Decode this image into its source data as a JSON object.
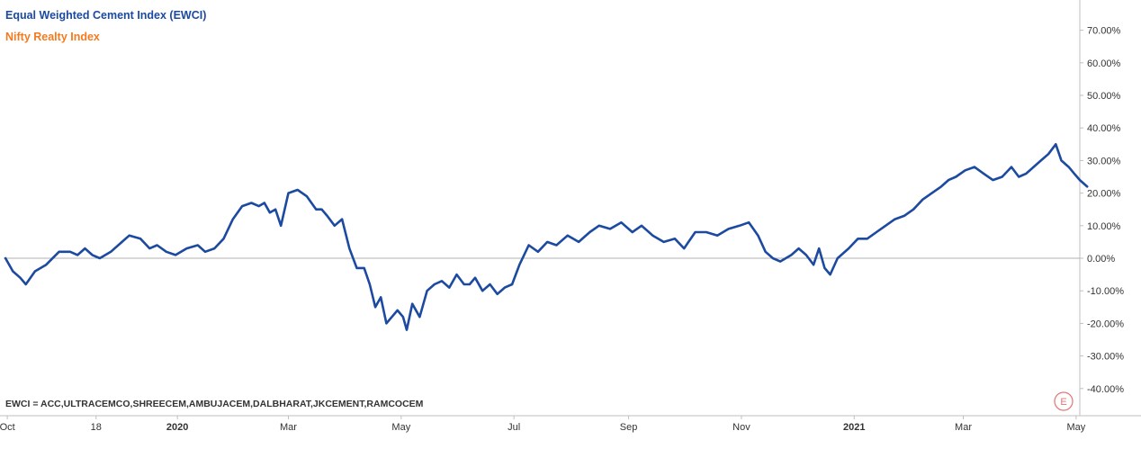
{
  "colors": {
    "ewci": "#1c4aa0",
    "realty": "#f47a1f",
    "trend": "#e51c23",
    "axis": "#bfbfbf",
    "zero": "#b0b0b0"
  },
  "legend": {
    "ewci_label": "Equal Weighted Cement Index (EWCI)",
    "realty_label": "Nifty Realty Index"
  },
  "footnote": "EWCI = ACC,ULTRACEMCO,SHREECEM,AMBUJACEM,DALBHARAT,JKCEMENT,RAMCOCEM",
  "watermark": "E",
  "chart_data": {
    "type": "line",
    "x_unit": "date",
    "y_unit": "percent change",
    "ylim": [
      -45,
      72
    ],
    "xlim": [
      "2019-09-29",
      "2021-05-03"
    ],
    "grid": false,
    "legend_position": "top-left",
    "y_ticks": [
      70,
      60,
      50,
      40,
      30,
      20,
      10,
      0,
      -10,
      -20,
      -30,
      -40
    ],
    "y_tick_labels": [
      "70.00%",
      "60.00%",
      "50.00%",
      "40.00%",
      "30.00%",
      "20.00%",
      "10.00%",
      "0.00%",
      "-10.00%",
      "-20.00%",
      "-30.00%",
      "-40.00%"
    ],
    "x_ticks": [
      {
        "date": "2019-10-01",
        "label": "Oct",
        "bold": false
      },
      {
        "date": "2019-11-18",
        "label": "18",
        "bold": false
      },
      {
        "date": "2020-01-01",
        "label": "2020",
        "bold": true
      },
      {
        "date": "2020-03-01",
        "label": "Mar",
        "bold": false
      },
      {
        "date": "2020-05-01",
        "label": "May",
        "bold": false
      },
      {
        "date": "2020-07-01",
        "label": "Jul",
        "bold": false
      },
      {
        "date": "2020-09-01",
        "label": "Sep",
        "bold": false
      },
      {
        "date": "2020-11-01",
        "label": "Nov",
        "bold": false
      },
      {
        "date": "2021-01-01",
        "label": "2021",
        "bold": true
      },
      {
        "date": "2021-03-01",
        "label": "Mar",
        "bold": false
      },
      {
        "date": "2021-05-01",
        "label": "May",
        "bold": false
      }
    ],
    "series": [
      {
        "name": "Equal Weighted Cement Index (EWCI)",
        "color_key": "ewci",
        "points": [
          [
            "2019-09-30",
            0
          ],
          [
            "2019-10-04",
            -4
          ],
          [
            "2019-10-08",
            -6
          ],
          [
            "2019-10-11",
            -8
          ],
          [
            "2019-10-16",
            -4
          ],
          [
            "2019-10-22",
            -2
          ],
          [
            "2019-10-29",
            2
          ],
          [
            "2019-11-04",
            2
          ],
          [
            "2019-11-08",
            1
          ],
          [
            "2019-11-12",
            3
          ],
          [
            "2019-11-16",
            1
          ],
          [
            "2019-11-20",
            0
          ],
          [
            "2019-11-26",
            2
          ],
          [
            "2019-12-02",
            5
          ],
          [
            "2019-12-06",
            7
          ],
          [
            "2019-12-12",
            6
          ],
          [
            "2019-12-17",
            3
          ],
          [
            "2019-12-21",
            4
          ],
          [
            "2019-12-26",
            2
          ],
          [
            "2019-12-31",
            1
          ],
          [
            "2020-01-06",
            3
          ],
          [
            "2020-01-12",
            4
          ],
          [
            "2020-01-16",
            2
          ],
          [
            "2020-01-21",
            3
          ],
          [
            "2020-01-26",
            6
          ],
          [
            "2020-01-31",
            12
          ],
          [
            "2020-02-05",
            16
          ],
          [
            "2020-02-10",
            17
          ],
          [
            "2020-02-14",
            16
          ],
          [
            "2020-02-17",
            17
          ],
          [
            "2020-02-20",
            14
          ],
          [
            "2020-02-23",
            15
          ],
          [
            "2020-02-26",
            10
          ],
          [
            "2020-03-01",
            20
          ],
          [
            "2020-03-06",
            21
          ],
          [
            "2020-03-11",
            19
          ],
          [
            "2020-03-16",
            15
          ],
          [
            "2020-03-19",
            15
          ],
          [
            "2020-03-22",
            13
          ],
          [
            "2020-03-26",
            10
          ],
          [
            "2020-03-30",
            12
          ],
          [
            "2020-04-03",
            3
          ],
          [
            "2020-04-07",
            -3
          ],
          [
            "2020-04-11",
            -3
          ],
          [
            "2020-04-14",
            -8
          ],
          [
            "2020-04-17",
            -15
          ],
          [
            "2020-04-20",
            -12
          ],
          [
            "2020-04-23",
            -20
          ],
          [
            "2020-04-26",
            -18
          ],
          [
            "2020-04-29",
            -16
          ],
          [
            "2020-05-02",
            -18
          ],
          [
            "2020-05-04",
            -22
          ],
          [
            "2020-05-07",
            -14
          ],
          [
            "2020-05-11",
            -18
          ],
          [
            "2020-05-15",
            -10
          ],
          [
            "2020-05-19",
            -8
          ],
          [
            "2020-05-23",
            -7
          ],
          [
            "2020-05-27",
            -9
          ],
          [
            "2020-05-31",
            -5
          ],
          [
            "2020-06-04",
            -8
          ],
          [
            "2020-06-07",
            -8
          ],
          [
            "2020-06-10",
            -6
          ],
          [
            "2020-06-14",
            -10
          ],
          [
            "2020-06-18",
            -8
          ],
          [
            "2020-06-22",
            -11
          ],
          [
            "2020-06-26",
            -9
          ],
          [
            "2020-06-30",
            -8
          ],
          [
            "2020-07-04",
            -2
          ],
          [
            "2020-07-09",
            4
          ],
          [
            "2020-07-14",
            2
          ],
          [
            "2020-07-19",
            5
          ],
          [
            "2020-07-24",
            4
          ],
          [
            "2020-07-30",
            7
          ],
          [
            "2020-08-05",
            5
          ],
          [
            "2020-08-11",
            8
          ],
          [
            "2020-08-16",
            10
          ],
          [
            "2020-08-22",
            9
          ],
          [
            "2020-08-28",
            11
          ],
          [
            "2020-09-03",
            8
          ],
          [
            "2020-09-08",
            10
          ],
          [
            "2020-09-14",
            7
          ],
          [
            "2020-09-20",
            5
          ],
          [
            "2020-09-26",
            6
          ],
          [
            "2020-10-01",
            3
          ],
          [
            "2020-10-07",
            8
          ],
          [
            "2020-10-13",
            8
          ],
          [
            "2020-10-19",
            7
          ],
          [
            "2020-10-25",
            9
          ],
          [
            "2020-10-31",
            10
          ],
          [
            "2020-11-05",
            11
          ],
          [
            "2020-11-10",
            7
          ],
          [
            "2020-11-14",
            2
          ],
          [
            "2020-11-18",
            0
          ],
          [
            "2020-11-22",
            -1
          ],
          [
            "2020-11-28",
            1
          ],
          [
            "2020-12-02",
            3
          ],
          [
            "2020-12-06",
            1
          ],
          [
            "2020-12-10",
            -2
          ],
          [
            "2020-12-13",
            3
          ],
          [
            "2020-12-16",
            -3
          ],
          [
            "2020-12-19",
            -5
          ],
          [
            "2020-12-23",
            0
          ],
          [
            "2020-12-29",
            3
          ],
          [
            "2021-01-03",
            6
          ],
          [
            "2021-01-08",
            6
          ],
          [
            "2021-01-13",
            8
          ],
          [
            "2021-01-18",
            10
          ],
          [
            "2021-01-23",
            12
          ],
          [
            "2021-01-28",
            13
          ],
          [
            "2021-02-02",
            15
          ],
          [
            "2021-02-07",
            18
          ],
          [
            "2021-02-12",
            20
          ],
          [
            "2021-02-17",
            22
          ],
          [
            "2021-02-21",
            24
          ],
          [
            "2021-02-25",
            25
          ],
          [
            "2021-03-02",
            27
          ],
          [
            "2021-03-07",
            28
          ],
          [
            "2021-03-12",
            26
          ],
          [
            "2021-03-17",
            24
          ],
          [
            "2021-03-22",
            25
          ],
          [
            "2021-03-27",
            28
          ],
          [
            "2021-03-31",
            25
          ],
          [
            "2021-04-04",
            26
          ],
          [
            "2021-04-08",
            28
          ],
          [
            "2021-04-12",
            30
          ],
          [
            "2021-04-16",
            32
          ],
          [
            "2021-04-20",
            35
          ],
          [
            "2021-04-23",
            30
          ],
          [
            "2021-04-27",
            28
          ],
          [
            "2021-04-30",
            26
          ],
          [
            "2021-05-03",
            24
          ],
          [
            "2021-05-07",
            22
          ]
        ]
      },
      {
        "name": "Nifty Realty Index",
        "color_key": "realty",
        "points": []
      }
    ],
    "trend_lines": []
  }
}
